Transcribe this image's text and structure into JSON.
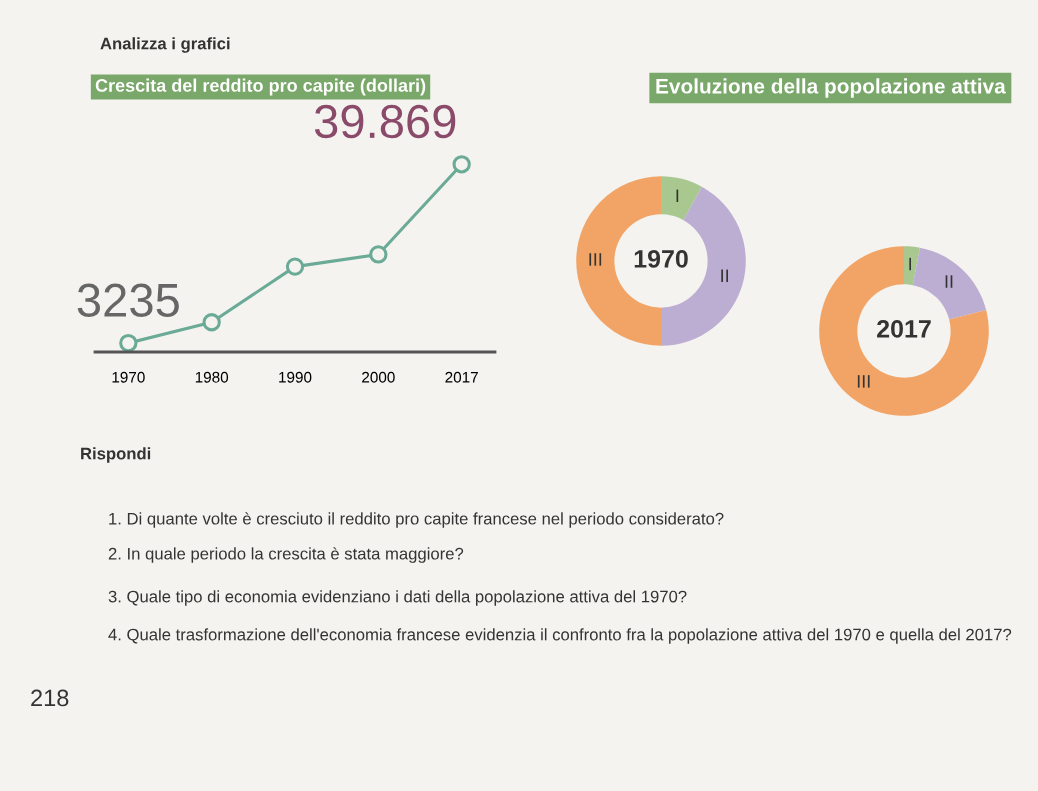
{
  "chart_data": [
    {
      "type": "line",
      "title": "Crescita del reddito pro capite (dollari)",
      "marker": "circle",
      "grid": false,
      "legend": false,
      "categories": [
        "1970",
        "1980",
        "1990",
        "2000",
        "2017"
      ],
      "series": [
        {
          "color": "#6aaa96",
          "values": [
            3235,
            7500,
            18900,
            21400,
            39869
          ],
          "value_labels": [
            "3235",
            null,
            null,
            null,
            "39.869"
          ]
        }
      ],
      "annotations": [
        "Analizza i grafici",
        "Rispondi",
        "1. Di quante volte è cresciuto il reddito pro capite francese nel periodo considerato?",
        "2. In quale periodo la crescita è stata maggiore?",
        "3. Quale tipo di economia evidenziano i dati della popolazione attiva del 1970?",
        "4. Quale trasformazione dell'economia francese evidenzia il confronto fra la popolazione attiva del 1970 e quella del 2017?",
        "218"
      ]
    },
    {
      "type": "donut",
      "title": "Evoluzione della popolazione attiva",
      "categories": [
        "I",
        "II",
        "III"
      ],
      "values": [
        8,
        42,
        50
      ],
      "colors": [
        "#a8c890",
        "#bcaed2",
        "#f2a466"
      ],
      "annotations": [
        "1970"
      ]
    },
    {
      "type": "donut",
      "categories": [
        "I",
        "II",
        "III"
      ],
      "values": [
        3,
        18,
        79
      ],
      "colors": [
        "#a8c890",
        "#bcaed2",
        "#f2a466"
      ],
      "annotations": [
        "2017"
      ]
    }
  ]
}
